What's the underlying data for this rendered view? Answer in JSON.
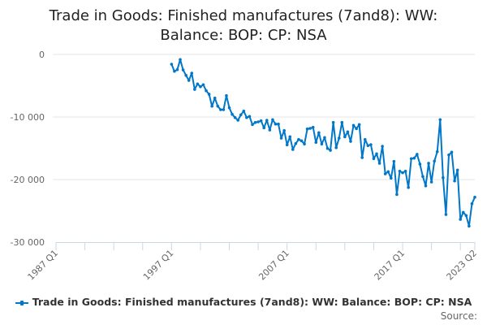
{
  "chart_data": {
    "type": "line",
    "title": "Trade in Goods: Finished manufactures (7and8): WW: Balance: BOP: CP: NSA",
    "xlabel": "",
    "ylabel": "",
    "x_start": "1997 Q1",
    "x_end": "2023 Q2",
    "x_range": [
      "1987 Q1",
      "2023 Q2"
    ],
    "x_tick_labels": [
      "1987 Q1",
      "1997 Q1",
      "2007 Q1",
      "2017 Q1",
      "2023 Q2"
    ],
    "ylim": [
      -30000,
      0
    ],
    "y_ticks": [
      0,
      -10000,
      -20000,
      -30000
    ],
    "y_tick_labels": [
      "0",
      "-10 000",
      "-20 000",
      "-30 000"
    ],
    "grid": "horizontal",
    "legend_position": "bottom",
    "color": "#0077c8",
    "series": [
      {
        "name": "Trade in Goods: Finished manufactures (7and8): WW: Balance: BOP: CP: NSA",
        "values": [
          -1560,
          -2690,
          -2430,
          -820,
          -2470,
          -3340,
          -4160,
          -2990,
          -5580,
          -4710,
          -5160,
          -4840,
          -5810,
          -6360,
          -8270,
          -6970,
          -8270,
          -8830,
          -8830,
          -6580,
          -8530,
          -9570,
          -10090,
          -10520,
          -9650,
          -9050,
          -10090,
          -9910,
          -11210,
          -10870,
          -10780,
          -10610,
          -11730,
          -10520,
          -12080,
          -10430,
          -11130,
          -11130,
          -13380,
          -12170,
          -14450,
          -13160,
          -15190,
          -14250,
          -13600,
          -13810,
          -14320,
          -11910,
          -11820,
          -11650,
          -14060,
          -12510,
          -14320,
          -13290,
          -15030,
          -15320,
          -10870,
          -14900,
          -13380,
          -10870,
          -13160,
          -12380,
          -13900,
          -11340,
          -11860,
          -11210,
          -16490,
          -13600,
          -14580,
          -14420,
          -16660,
          -15880,
          -17400,
          -14680,
          -19090,
          -18740,
          -19780,
          -17100,
          -22380,
          -18660,
          -18920,
          -18660,
          -21260,
          -16660,
          -16580,
          -15970,
          -17530,
          -19520,
          -21000,
          -17400,
          -20390,
          -17050,
          -15540,
          -10430,
          -19700,
          -25580,
          -16060,
          -15620,
          -20220,
          -18480,
          -26360,
          -25230,
          -25750,
          -27440,
          -23860,
          -22820
        ]
      }
    ]
  },
  "source_label": "Source:"
}
